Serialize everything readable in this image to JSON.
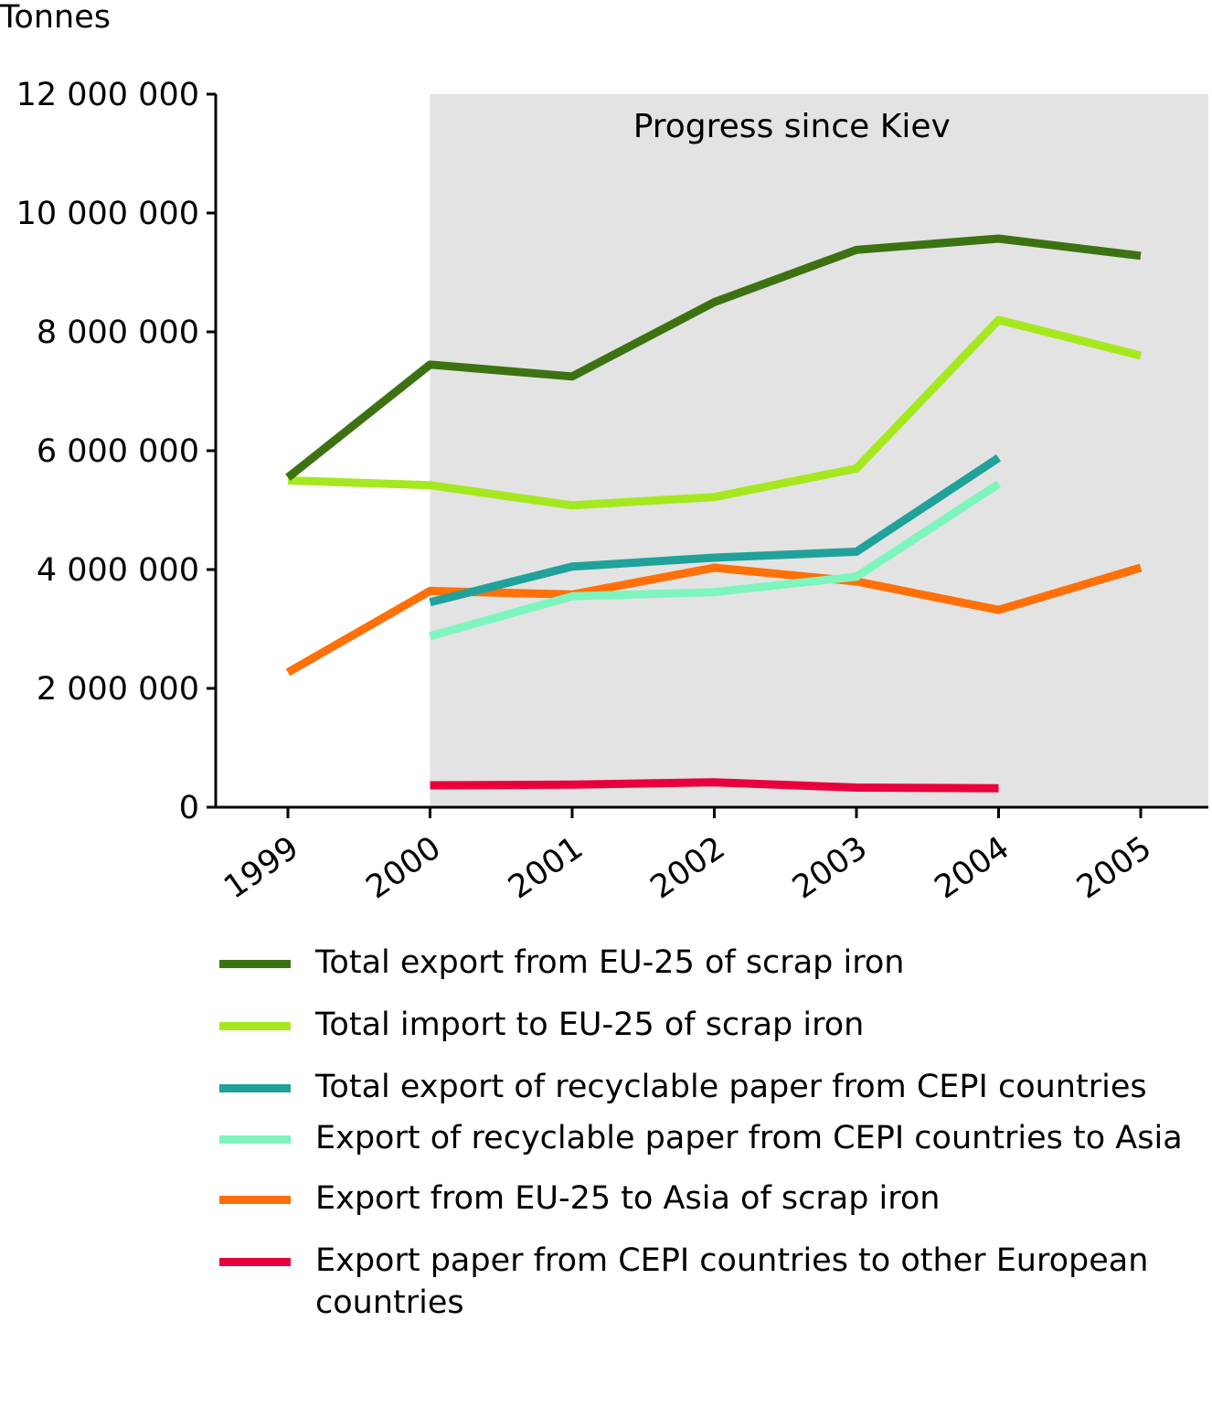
{
  "chart_data": {
    "type": "line",
    "ylabel": "Tonnes",
    "xlabel": "",
    "ylim": [
      0,
      12000000
    ],
    "yticks": [
      0,
      2000000,
      4000000,
      6000000,
      8000000,
      10000000,
      12000000
    ],
    "ytick_labels": [
      "0",
      "2 000 000",
      "4 000 000",
      "6 000 000",
      "8 000 000",
      "10 000 000",
      "12 000 000"
    ],
    "x": [
      "1999",
      "2000",
      "2001",
      "2002",
      "2003",
      "2004",
      "2005"
    ],
    "shaded_region": {
      "from": "2000",
      "label": "Progress since Kiev"
    },
    "grid": false,
    "legend_position": "bottom",
    "series": [
      {
        "name": "Total export from EU-25 of scrap iron",
        "color": "#3d7212",
        "values": [
          5550000,
          7450000,
          7250000,
          8500000,
          9380000,
          9570000,
          9280000
        ]
      },
      {
        "name": "Total import to EU-25 of scrap iron",
        "color": "#a6e820",
        "values": [
          5500000,
          5420000,
          5080000,
          5220000,
          5700000,
          8200000,
          7600000
        ]
      },
      {
        "name": "Total export of recyclable paper from CEPI countries",
        "color": "#20a29a",
        "values": [
          null,
          3450000,
          4050000,
          4200000,
          4300000,
          5880000,
          null
        ]
      },
      {
        "name": "Export of recyclable paper from CEPI countries to Asia",
        "color": "#7ff5be",
        "values": [
          null,
          2880000,
          3550000,
          3620000,
          3880000,
          5440000,
          null
        ]
      },
      {
        "name": "Export from EU-25 to Asia of scrap iron",
        "color": "#ff7008",
        "values": [
          2270000,
          3640000,
          3580000,
          4030000,
          3800000,
          3320000,
          4030000
        ]
      },
      {
        "name": "Export paper from CEPI countries to other European countries",
        "color": "#e8003c",
        "values": [
          null,
          370000,
          380000,
          420000,
          330000,
          320000,
          null
        ]
      }
    ]
  }
}
